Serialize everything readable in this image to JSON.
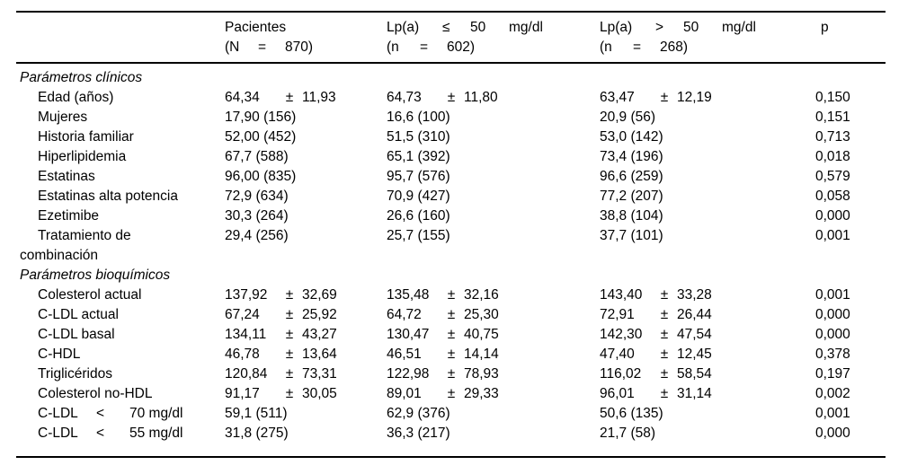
{
  "colors": {
    "background": "#ffffff",
    "text": "#000000",
    "rule": "#000000"
  },
  "table": {
    "columns": [
      {
        "lines": [
          {
            "kind": "plain",
            "parts": [
              "Pacientes"
            ]
          },
          {
            "kind": "n",
            "parts": [
              "(N",
              "=",
              "870)"
            ]
          }
        ]
      },
      {
        "lines": [
          {
            "kind": "lp",
            "parts": [
              "Lp(a)",
              "≤",
              "50",
              "mg/dl"
            ]
          },
          {
            "kind": "n",
            "parts": [
              "(n",
              "=",
              "602)"
            ]
          }
        ]
      },
      {
        "lines": [
          {
            "kind": "lp",
            "parts": [
              "Lp(a)",
              ">",
              "50",
              "mg/dl"
            ]
          },
          {
            "kind": "n",
            "parts": [
              "(n",
              "=",
              "268)"
            ]
          }
        ]
      },
      {
        "lines": [
          {
            "kind": "plain",
            "parts": [
              "p"
            ]
          }
        ]
      }
    ],
    "sections": [
      {
        "title": "Parámetros clínicos",
        "rows": [
          {
            "label": {
              "lines": [
                {
                  "kind": "plain",
                  "parts": [
                    "Edad (años)"
                  ]
                }
              ]
            },
            "cells": [
              {
                "kind": "pm",
                "parts": [
                  "64,34",
                  "±",
                  "11,93"
                ]
              },
              {
                "kind": "pm",
                "parts": [
                  "64,73",
                  "±",
                  "11,80"
                ]
              },
              {
                "kind": "pm",
                "parts": [
                  "63,47",
                  "±",
                  "12,19"
                ]
              }
            ],
            "p": "0,150"
          },
          {
            "label": {
              "lines": [
                {
                  "kind": "plain",
                  "parts": [
                    "Mujeres"
                  ]
                }
              ]
            },
            "cells": [
              {
                "kind": "plain",
                "parts": [
                  "17,90 (156)"
                ]
              },
              {
                "kind": "plain",
                "parts": [
                  "16,6 (100)"
                ]
              },
              {
                "kind": "plain",
                "parts": [
                  "20,9 (56)"
                ]
              }
            ],
            "p": "0,151"
          },
          {
            "label": {
              "lines": [
                {
                  "kind": "plain",
                  "parts": [
                    "Historia familiar"
                  ]
                }
              ]
            },
            "cells": [
              {
                "kind": "plain",
                "parts": [
                  "52,00 (452)"
                ]
              },
              {
                "kind": "plain",
                "parts": [
                  "51,5 (310)"
                ]
              },
              {
                "kind": "plain",
                "parts": [
                  "53,0 (142)"
                ]
              }
            ],
            "p": "0,713"
          },
          {
            "label": {
              "lines": [
                {
                  "kind": "plain",
                  "parts": [
                    "Hiperlipidemia"
                  ]
                }
              ]
            },
            "cells": [
              {
                "kind": "plain",
                "parts": [
                  "67,7 (588)"
                ]
              },
              {
                "kind": "plain",
                "parts": [
                  "65,1 (392)"
                ]
              },
              {
                "kind": "plain",
                "parts": [
                  "73,4 (196)"
                ]
              }
            ],
            "p": "0,018"
          },
          {
            "label": {
              "lines": [
                {
                  "kind": "plain",
                  "parts": [
                    "Estatinas"
                  ]
                }
              ]
            },
            "cells": [
              {
                "kind": "plain",
                "parts": [
                  "96,00 (835)"
                ]
              },
              {
                "kind": "plain",
                "parts": [
                  "95,7 (576)"
                ]
              },
              {
                "kind": "plain",
                "parts": [
                  "96,6 (259)"
                ]
              }
            ],
            "p": "0,579"
          },
          {
            "label": {
              "lines": [
                {
                  "kind": "plain",
                  "parts": [
                    "Estatinas alta potencia"
                  ]
                }
              ]
            },
            "cells": [
              {
                "kind": "plain",
                "parts": [
                  "72,9 (634)"
                ]
              },
              {
                "kind": "plain",
                "parts": [
                  "70,9 (427)"
                ]
              },
              {
                "kind": "plain",
                "parts": [
                  "77,2 (207)"
                ]
              }
            ],
            "p": "0,058"
          },
          {
            "label": {
              "lines": [
                {
                  "kind": "plain",
                  "parts": [
                    "Ezetimibe"
                  ]
                }
              ]
            },
            "cells": [
              {
                "kind": "plain",
                "parts": [
                  "30,3 (264)"
                ]
              },
              {
                "kind": "plain",
                "parts": [
                  "26,6 (160)"
                ]
              },
              {
                "kind": "plain",
                "parts": [
                  "38,8 (104)"
                ]
              }
            ],
            "p": "0,000"
          },
          {
            "label": {
              "lines": [
                {
                  "kind": "plain",
                  "parts": [
                    "Tratamiento de"
                  ]
                },
                {
                  "kind": "plain",
                  "parts": [
                    "combinación"
                  ],
                  "hang": true
                }
              ]
            },
            "cells": [
              {
                "kind": "plain",
                "parts": [
                  "29,4 (256)"
                ]
              },
              {
                "kind": "plain",
                "parts": [
                  "25,7 (155)"
                ]
              },
              {
                "kind": "plain",
                "parts": [
                  "37,7 (101)"
                ]
              }
            ],
            "p": "0,001"
          }
        ]
      },
      {
        "title": "Parámetros bioquímicos",
        "rows": [
          {
            "label": {
              "lines": [
                {
                  "kind": "plain",
                  "parts": [
                    "Colesterol actual"
                  ]
                }
              ]
            },
            "cells": [
              {
                "kind": "pm",
                "parts": [
                  "137,92",
                  "±",
                  "32,69"
                ]
              },
              {
                "kind": "pm",
                "parts": [
                  "135,48",
                  "±",
                  "32,16"
                ]
              },
              {
                "kind": "pm",
                "parts": [
                  "143,40",
                  "±",
                  "33,28"
                ]
              }
            ],
            "p": "0,001"
          },
          {
            "label": {
              "lines": [
                {
                  "kind": "plain",
                  "parts": [
                    "C-LDL actual"
                  ]
                }
              ]
            },
            "cells": [
              {
                "kind": "pm",
                "parts": [
                  "67,24",
                  "±",
                  "25,92"
                ]
              },
              {
                "kind": "pm",
                "parts": [
                  "64,72",
                  "±",
                  "25,30"
                ]
              },
              {
                "kind": "pm",
                "parts": [
                  "72,91",
                  "±",
                  "26,44"
                ]
              }
            ],
            "p": "0,000"
          },
          {
            "label": {
              "lines": [
                {
                  "kind": "plain",
                  "parts": [
                    "C-LDL basal"
                  ]
                }
              ]
            },
            "cells": [
              {
                "kind": "pm",
                "parts": [
                  "134,11",
                  "±",
                  "43,27"
                ]
              },
              {
                "kind": "pm",
                "parts": [
                  "130,47",
                  "±",
                  "40,75"
                ]
              },
              {
                "kind": "pm",
                "parts": [
                  "142,30",
                  "±",
                  "47,54"
                ]
              }
            ],
            "p": "0,000"
          },
          {
            "label": {
              "lines": [
                {
                  "kind": "plain",
                  "parts": [
                    "C-HDL"
                  ]
                }
              ]
            },
            "cells": [
              {
                "kind": "pm",
                "parts": [
                  "46,78",
                  "±",
                  "13,64"
                ]
              },
              {
                "kind": "pm",
                "parts": [
                  "46,51",
                  "±",
                  "14,14"
                ]
              },
              {
                "kind": "pm",
                "parts": [
                  "47,40",
                  "±",
                  "12,45"
                ]
              }
            ],
            "p": "0,378"
          },
          {
            "label": {
              "lines": [
                {
                  "kind": "plain",
                  "parts": [
                    "Triglicéridos"
                  ]
                }
              ]
            },
            "cells": [
              {
                "kind": "pm",
                "parts": [
                  "120,84",
                  "±",
                  "73,31"
                ]
              },
              {
                "kind": "pm",
                "parts": [
                  "122,98",
                  "±",
                  "78,93"
                ]
              },
              {
                "kind": "pm",
                "parts": [
                  "116,02",
                  "±",
                  "58,54"
                ]
              }
            ],
            "p": "0,197"
          },
          {
            "label": {
              "lines": [
                {
                  "kind": "plain",
                  "parts": [
                    "Colesterol no-HDL"
                  ]
                }
              ]
            },
            "cells": [
              {
                "kind": "pm",
                "parts": [
                  "91,17",
                  "±",
                  "30,05"
                ]
              },
              {
                "kind": "pm",
                "parts": [
                  "89,01",
                  "±",
                  "29,33"
                ]
              },
              {
                "kind": "pm",
                "parts": [
                  "96,01",
                  "±",
                  "31,14"
                ]
              }
            ],
            "p": "0,002"
          },
          {
            "label": {
              "lines": [
                {
                  "kind": "lt",
                  "parts": [
                    "C-LDL",
                    "<",
                    "70 mg/dl"
                  ]
                }
              ]
            },
            "cells": [
              {
                "kind": "plain",
                "parts": [
                  "59,1 (511)"
                ]
              },
              {
                "kind": "plain",
                "parts": [
                  "62,9 (376)"
                ]
              },
              {
                "kind": "plain",
                "parts": [
                  "50,6 (135)"
                ]
              }
            ],
            "p": "0,001"
          },
          {
            "label": {
              "lines": [
                {
                  "kind": "lt",
                  "parts": [
                    "C-LDL",
                    "<",
                    "55 mg/dl"
                  ]
                }
              ]
            },
            "cells": [
              {
                "kind": "plain",
                "parts": [
                  "31,8 (275)"
                ]
              },
              {
                "kind": "plain",
                "parts": [
                  "36,3 (217)"
                ]
              },
              {
                "kind": "plain",
                "parts": [
                  "21,7 (58)"
                ]
              }
            ],
            "p": "0,000"
          }
        ]
      }
    ]
  }
}
